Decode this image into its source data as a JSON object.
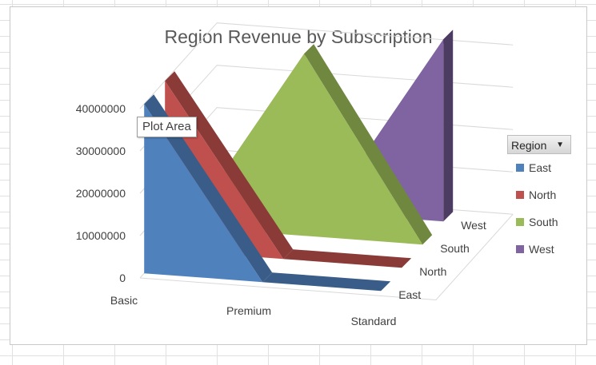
{
  "chart_data": {
    "type": "area",
    "subtype": "3d-area",
    "title": "Region Revenue by Subscription",
    "categories": [
      "Basic",
      "Premium",
      "Standard"
    ],
    "y_ticks": [
      "0",
      "10000000",
      "20000000",
      "30000000",
      "40000000"
    ],
    "ylim": [
      0,
      40000000
    ],
    "depth_labels": [
      "East",
      "North",
      "South",
      "West"
    ],
    "series": [
      {
        "name": "East",
        "values": [
          40000000,
          0,
          0
        ],
        "color": "#4f81bd"
      },
      {
        "name": "North",
        "values": [
          40000000,
          0,
          0
        ],
        "color": "#c0504d"
      },
      {
        "name": "South",
        "values": [
          0,
          43000000,
          0
        ],
        "color": "#9bbb59"
      },
      {
        "name": "West",
        "values": [
          0,
          0,
          43000000
        ],
        "color": "#8064a2"
      }
    ],
    "legend": {
      "title": "Region",
      "position": "right"
    },
    "gridlines": true
  },
  "legend_button": {
    "label": "Region",
    "arrow": "▼"
  },
  "tooltip": {
    "text": "Plot Area"
  }
}
